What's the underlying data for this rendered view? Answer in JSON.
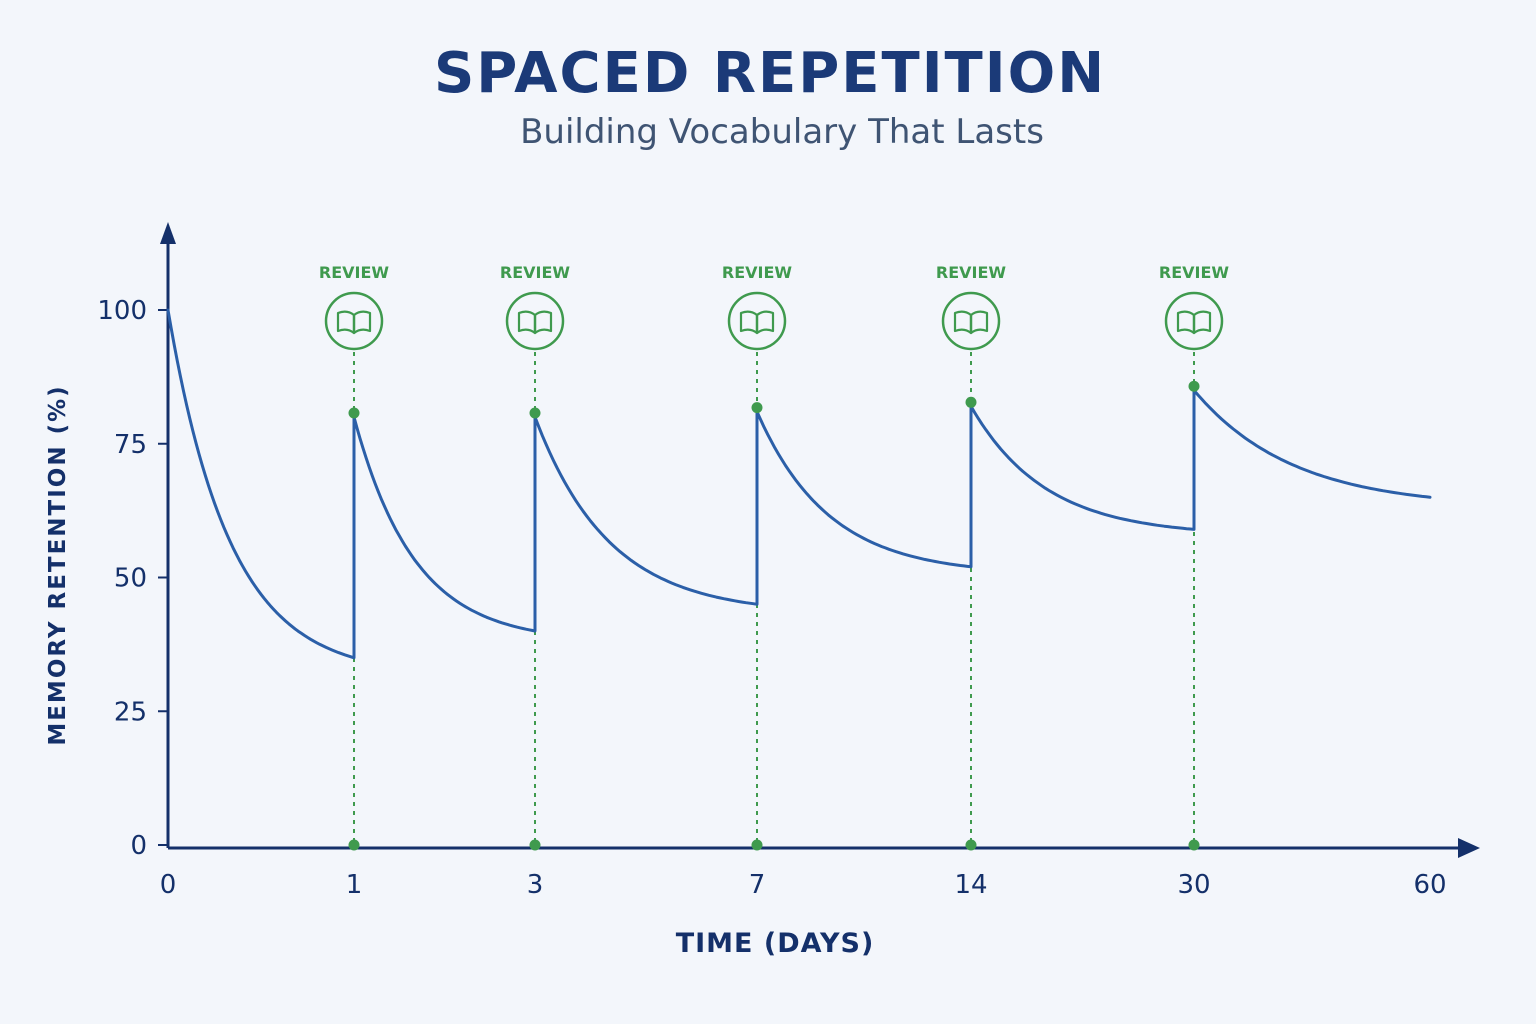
{
  "chart_data": {
    "type": "line",
    "title": "SPACED REPETITION",
    "subtitle": "Building Vocabulary That Lasts",
    "xlabel": "TIME (DAYS)",
    "ylabel": "MEMORY RETENTION (%)",
    "ylim": [
      0,
      100
    ],
    "x_ticks": [
      "0",
      "1",
      "3",
      "7",
      "14",
      "30",
      "60"
    ],
    "y_ticks": [
      0,
      25,
      50,
      75,
      100
    ],
    "grid": false,
    "segments": [
      {
        "x_start": 0,
        "x_end": 1,
        "y_start": 100,
        "y_end": 35
      },
      {
        "x_start": 1,
        "x_end": 3,
        "y_start": 80,
        "y_end": 40
      },
      {
        "x_start": 3,
        "x_end": 7,
        "y_start": 80,
        "y_end": 45
      },
      {
        "x_start": 7,
        "x_end": 14,
        "y_start": 81,
        "y_end": 52
      },
      {
        "x_start": 14,
        "x_end": 30,
        "y_start": 82,
        "y_end": 59
      },
      {
        "x_start": 30,
        "x_end": 60,
        "y_start": 85,
        "y_end": 65
      }
    ],
    "reviews": [
      {
        "day": 1,
        "label": "REVIEW",
        "retention_after": 80
      },
      {
        "day": 3,
        "label": "REVIEW",
        "retention_after": 80
      },
      {
        "day": 7,
        "label": "REVIEW",
        "retention_after": 81
      },
      {
        "day": 14,
        "label": "REVIEW",
        "retention_after": 82
      },
      {
        "day": 30,
        "label": "REVIEW",
        "retention_after": 85
      }
    ],
    "icons": {
      "review": "open-book-icon"
    },
    "colors": {
      "curve": "#2b5fa8",
      "axis": "#14306a",
      "review": "#3f9a4e",
      "title": "#1b3a78",
      "subtitle": "#3f5473",
      "text": "#14306a"
    }
  }
}
